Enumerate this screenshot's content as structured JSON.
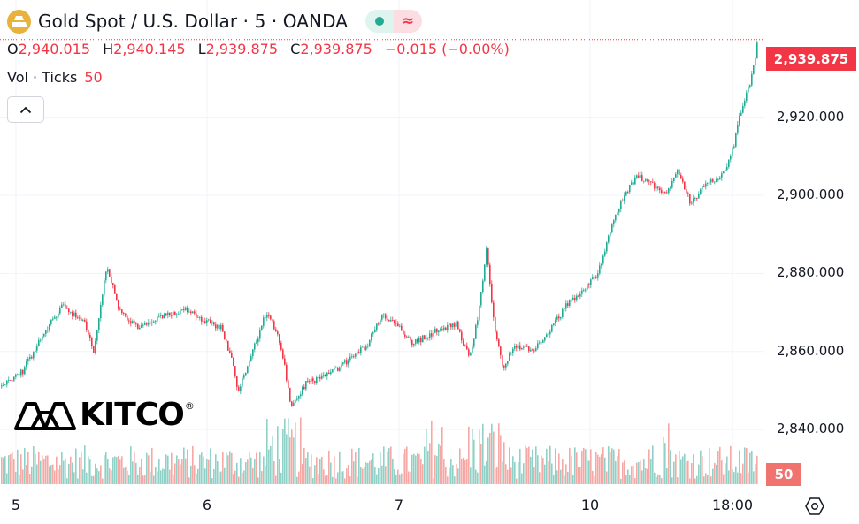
{
  "header": {
    "title": "Gold Spot / U.S. Dollar · 5 · OANDA",
    "open_key": "O",
    "open": "2,940.015",
    "high_key": "H",
    "high": "2,940.145",
    "low_key": "L",
    "low": "2,939.875",
    "close_key": "C",
    "close": "2,939.875",
    "change": "−0.015 (−0.00%)"
  },
  "volume_legend": {
    "label": "Vol · Ticks",
    "value": "50"
  },
  "logo": {
    "text": "KITCO",
    "reg": "®"
  },
  "colors": {
    "up": "#22ab94",
    "down": "#f23645",
    "vol_up": "#8fd1c6",
    "vol_down": "#f6a8a5",
    "grid": "#f0f3fa"
  },
  "icons": {
    "symbol": "gold-bars-icon",
    "collapse": "chevron-up-icon",
    "settings": "gear-hexagon-icon",
    "market": "market-open-dot-icon",
    "wave": "wave-icon"
  },
  "current_price_label": "2,939.875",
  "current_volume_label": "50",
  "chart_data": {
    "type": "candlestick",
    "title": "Gold Spot / U.S. Dollar · 5 · OANDA",
    "interval": "5",
    "yticks": [
      "2,840.000",
      "2,860.000",
      "2,880.000",
      "2,900.000",
      "2,920.000"
    ],
    "ylim": [
      2826,
      2950
    ],
    "xticks": [
      "5",
      "6",
      "7",
      "10",
      "18:00"
    ],
    "last_price": 2939.875,
    "price_path": [
      [
        0,
        2851
      ],
      [
        25,
        2855
      ],
      [
        50,
        2865
      ],
      [
        70,
        2872
      ],
      [
        95,
        2867
      ],
      [
        105,
        2860
      ],
      [
        120,
        2882
      ],
      [
        135,
        2870
      ],
      [
        155,
        2866
      ],
      [
        185,
        2869
      ],
      [
        210,
        2871
      ],
      [
        230,
        2868
      ],
      [
        250,
        2866
      ],
      [
        262,
        2857
      ],
      [
        268,
        2850
      ],
      [
        285,
        2860
      ],
      [
        300,
        2870
      ],
      [
        312,
        2865
      ],
      [
        320,
        2858
      ],
      [
        328,
        2845
      ],
      [
        345,
        2852
      ],
      [
        370,
        2854
      ],
      [
        395,
        2858
      ],
      [
        415,
        2862
      ],
      [
        430,
        2869
      ],
      [
        445,
        2868
      ],
      [
        465,
        2862
      ],
      [
        490,
        2865
      ],
      [
        515,
        2867
      ],
      [
        530,
        2858
      ],
      [
        540,
        2870
      ],
      [
        549,
        2886
      ],
      [
        557,
        2868
      ],
      [
        568,
        2855
      ],
      [
        580,
        2862
      ],
      [
        600,
        2860
      ],
      [
        620,
        2865
      ],
      [
        640,
        2872
      ],
      [
        660,
        2876
      ],
      [
        675,
        2880
      ],
      [
        690,
        2892
      ],
      [
        705,
        2900
      ],
      [
        720,
        2905
      ],
      [
        735,
        2903
      ],
      [
        752,
        2900
      ],
      [
        765,
        2907
      ],
      [
        780,
        2898
      ],
      [
        795,
        2902
      ],
      [
        808,
        2904
      ],
      [
        820,
        2907
      ],
      [
        828,
        2912
      ],
      [
        835,
        2920
      ],
      [
        845,
        2927
      ],
      [
        852,
        2934
      ],
      [
        856,
        2939.875
      ]
    ],
    "volume_ticks_last": 50
  }
}
